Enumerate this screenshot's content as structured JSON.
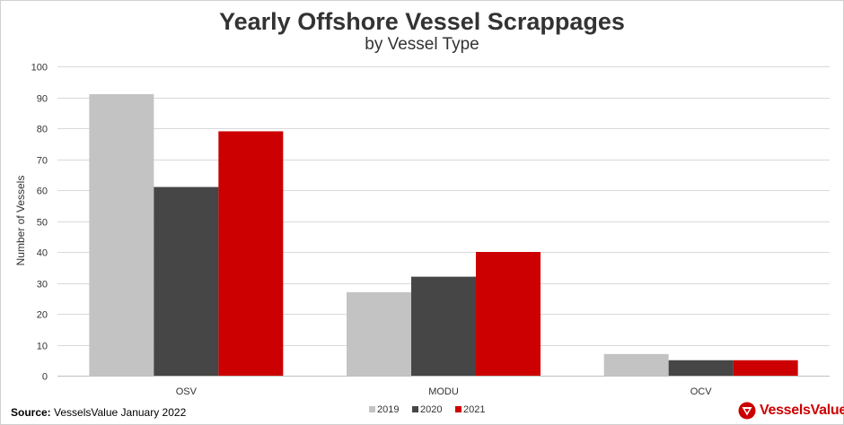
{
  "chart_data": {
    "type": "bar",
    "title": "Yearly Offshore Vessel Scrappages",
    "subtitle": "by Vessel Type",
    "xlabel": "",
    "ylabel": "Number of Vessels",
    "ylim": [
      0,
      100
    ],
    "yticks": [
      0,
      10,
      20,
      30,
      40,
      50,
      60,
      70,
      80,
      90,
      100
    ],
    "grid": true,
    "legend_position": "bottom",
    "categories": [
      "OSV",
      "MODU",
      "OCV"
    ],
    "series": [
      {
        "name": "2019",
        "color": "#c3c3c3",
        "values": [
          91,
          27,
          7
        ]
      },
      {
        "name": "2020",
        "color": "#464646",
        "values": [
          61,
          32,
          5
        ]
      },
      {
        "name": "2021",
        "color": "#cc0000",
        "values": [
          79,
          40,
          5
        ]
      }
    ]
  },
  "source": {
    "label": "Source:",
    "text": "VesselsValue January 2022"
  },
  "logo": {
    "text": "VesselsValue",
    "icon": "vesselsvalue-triangle-logo",
    "color": "#cc0000"
  }
}
